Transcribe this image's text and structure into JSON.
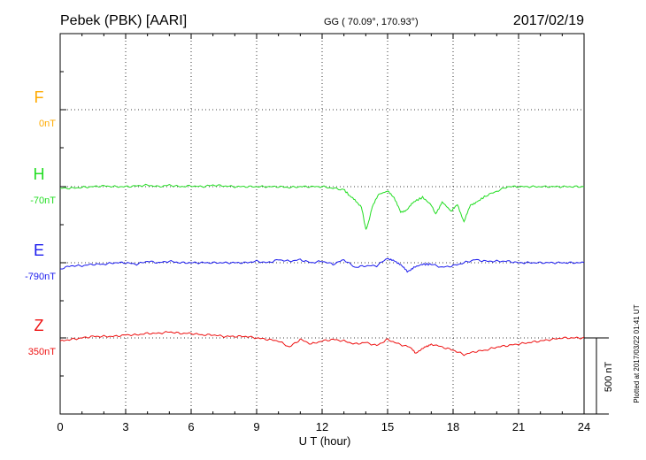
{
  "header": {
    "station": "Pebek (PBK)  [AARI]",
    "coords": "GG ( 70.09°, 170.93°)",
    "date": "2017/02/19"
  },
  "side_note": "Plotted at 2017/03/22 01:41 UT",
  "chart_data": {
    "type": "line",
    "xlabel": "U T (hour)",
    "xlim": [
      0,
      24
    ],
    "xticks": [
      0,
      3,
      6,
      9,
      12,
      15,
      18,
      21,
      24
    ],
    "grid": true,
    "scale_bar": {
      "label": "500 nT",
      "value_nT": 500
    },
    "series": [
      {
        "name": "F",
        "baseline_label": "0nT",
        "color": "#ffaa00",
        "x": [],
        "y": []
      },
      {
        "name": "H",
        "baseline_label": "-70nT",
        "color": "#22dd22",
        "x": [
          0,
          0.5,
          1,
          1.5,
          2,
          2.5,
          3,
          3.5,
          4,
          4.5,
          5,
          5.5,
          6,
          6.5,
          7,
          7.5,
          8,
          8.5,
          9,
          9.5,
          10,
          10.5,
          11,
          11.5,
          12,
          12.5,
          13,
          13.2,
          13.5,
          13.8,
          14,
          14.1,
          14.3,
          14.6,
          15,
          15.3,
          15.6,
          15.9,
          16.2,
          16.6,
          17,
          17.2,
          17.5,
          17.9,
          18.2,
          18.5,
          18.8,
          19.1,
          19.5,
          20,
          20.5,
          21,
          21.5,
          22,
          22.5,
          23,
          23.5,
          24
        ],
        "y": [
          -10,
          -10,
          -5,
          0,
          5,
          0,
          0,
          5,
          10,
          0,
          10,
          0,
          5,
          0,
          10,
          5,
          0,
          0,
          0,
          0,
          0,
          -5,
          0,
          0,
          0,
          -10,
          -20,
          -50,
          -90,
          -130,
          -280,
          -250,
          -130,
          -50,
          -30,
          -70,
          -170,
          -150,
          -100,
          -70,
          -120,
          -180,
          -100,
          -160,
          -120,
          -230,
          -120,
          -100,
          -60,
          -30,
          0,
          0,
          0,
          0,
          0,
          0,
          0,
          0
        ]
      },
      {
        "name": "E",
        "baseline_label": "-790nT",
        "color": "#1a1aee",
        "x": [
          0,
          0.5,
          1,
          1.5,
          2,
          2.5,
          3,
          3.5,
          4,
          4.5,
          5,
          5.5,
          6,
          6.5,
          7,
          7.5,
          8,
          8.5,
          9,
          9.5,
          10,
          10.5,
          11,
          11.5,
          12,
          12.5,
          13,
          13.5,
          14,
          14.5,
          15,
          15.3,
          15.6,
          15.9,
          16.2,
          16.6,
          17,
          17.5,
          18,
          18.5,
          19,
          19.5,
          20,
          20.5,
          21,
          21.5,
          22,
          22.5,
          23,
          23.5,
          24
        ],
        "y": [
          -40,
          -20,
          -20,
          -10,
          -10,
          0,
          0,
          -10,
          10,
          0,
          10,
          0,
          0,
          0,
          0,
          0,
          0,
          0,
          10,
          0,
          20,
          10,
          20,
          0,
          10,
          -10,
          20,
          -30,
          -20,
          -20,
          30,
          10,
          -10,
          -60,
          -30,
          -10,
          -10,
          -30,
          -20,
          0,
          20,
          10,
          10,
          10,
          0,
          0,
          0,
          0,
          0,
          0,
          0
        ]
      },
      {
        "name": "Z",
        "baseline_label": "350nT",
        "color": "#ee1111",
        "x": [
          0,
          0.5,
          1,
          1.5,
          2,
          2.5,
          3,
          3.5,
          4,
          4.5,
          5,
          5.5,
          6,
          6.5,
          7,
          7.5,
          8,
          8.5,
          9,
          9.5,
          10,
          10.5,
          11,
          11.5,
          12,
          12.5,
          13,
          13.5,
          14,
          14.5,
          15,
          15.5,
          16,
          16.3,
          16.7,
          17,
          17.5,
          18,
          18.5,
          19,
          19.5,
          20,
          20.5,
          21,
          21.5,
          22,
          22.5,
          23,
          23.5,
          24
        ],
        "y": [
          -20,
          -10,
          0,
          10,
          10,
          10,
          20,
          20,
          30,
          30,
          40,
          30,
          30,
          20,
          20,
          10,
          10,
          10,
          0,
          -10,
          -20,
          -60,
          -10,
          -40,
          -20,
          -10,
          -20,
          -40,
          -30,
          -50,
          -10,
          -40,
          -60,
          -100,
          -60,
          -40,
          -60,
          -80,
          -110,
          -90,
          -80,
          -60,
          -50,
          -40,
          -30,
          -20,
          -10,
          0,
          0,
          0
        ]
      }
    ]
  }
}
